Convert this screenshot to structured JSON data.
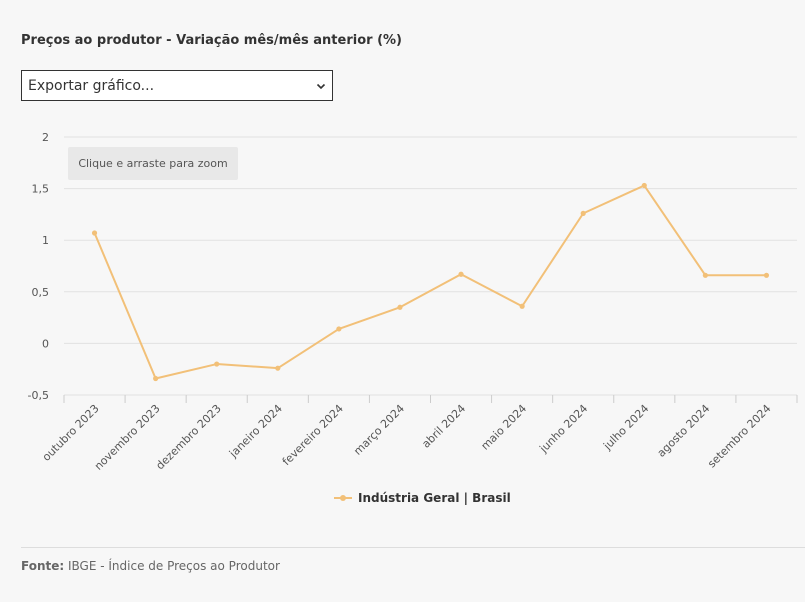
{
  "title": "Preços ao produtor - Variação mês/mês anterior (%)",
  "export": {
    "selected": "Exportar gráfico..."
  },
  "zoom_hint": "Clique e arraste para zoom",
  "source": {
    "label": "Fonte:",
    "text": " IBGE - Índice de Preços ao Produtor"
  },
  "colors": {
    "series": "#f2c078",
    "grid": "#e2e2e2",
    "axis_text": "#555555"
  },
  "chart_data": {
    "type": "line",
    "title": "Preços ao produtor - Variação mês/mês anterior (%)",
    "categories": [
      "outubro 2023",
      "novembro 2023",
      "dezembro 2023",
      "janeiro 2024",
      "fevereiro 2024",
      "março 2024",
      "abril 2024",
      "maio 2024",
      "junho 2024",
      "julho 2024",
      "agosto 2024",
      "setembro 2024"
    ],
    "series": [
      {
        "name": "Indústria Geral | Brasil",
        "values": [
          1.07,
          -0.34,
          -0.2,
          -0.24,
          0.14,
          0.35,
          0.67,
          0.36,
          1.26,
          1.53,
          0.66,
          0.66
        ]
      }
    ],
    "ylim": [
      -0.5,
      2
    ],
    "yticks": [
      -0.5,
      0,
      0.5,
      1,
      1.5,
      2
    ],
    "ytick_labels": [
      "-0,5",
      "0",
      "0,5",
      "1",
      "1,5",
      "2"
    ],
    "grid": true,
    "legend": "bottom-center"
  }
}
